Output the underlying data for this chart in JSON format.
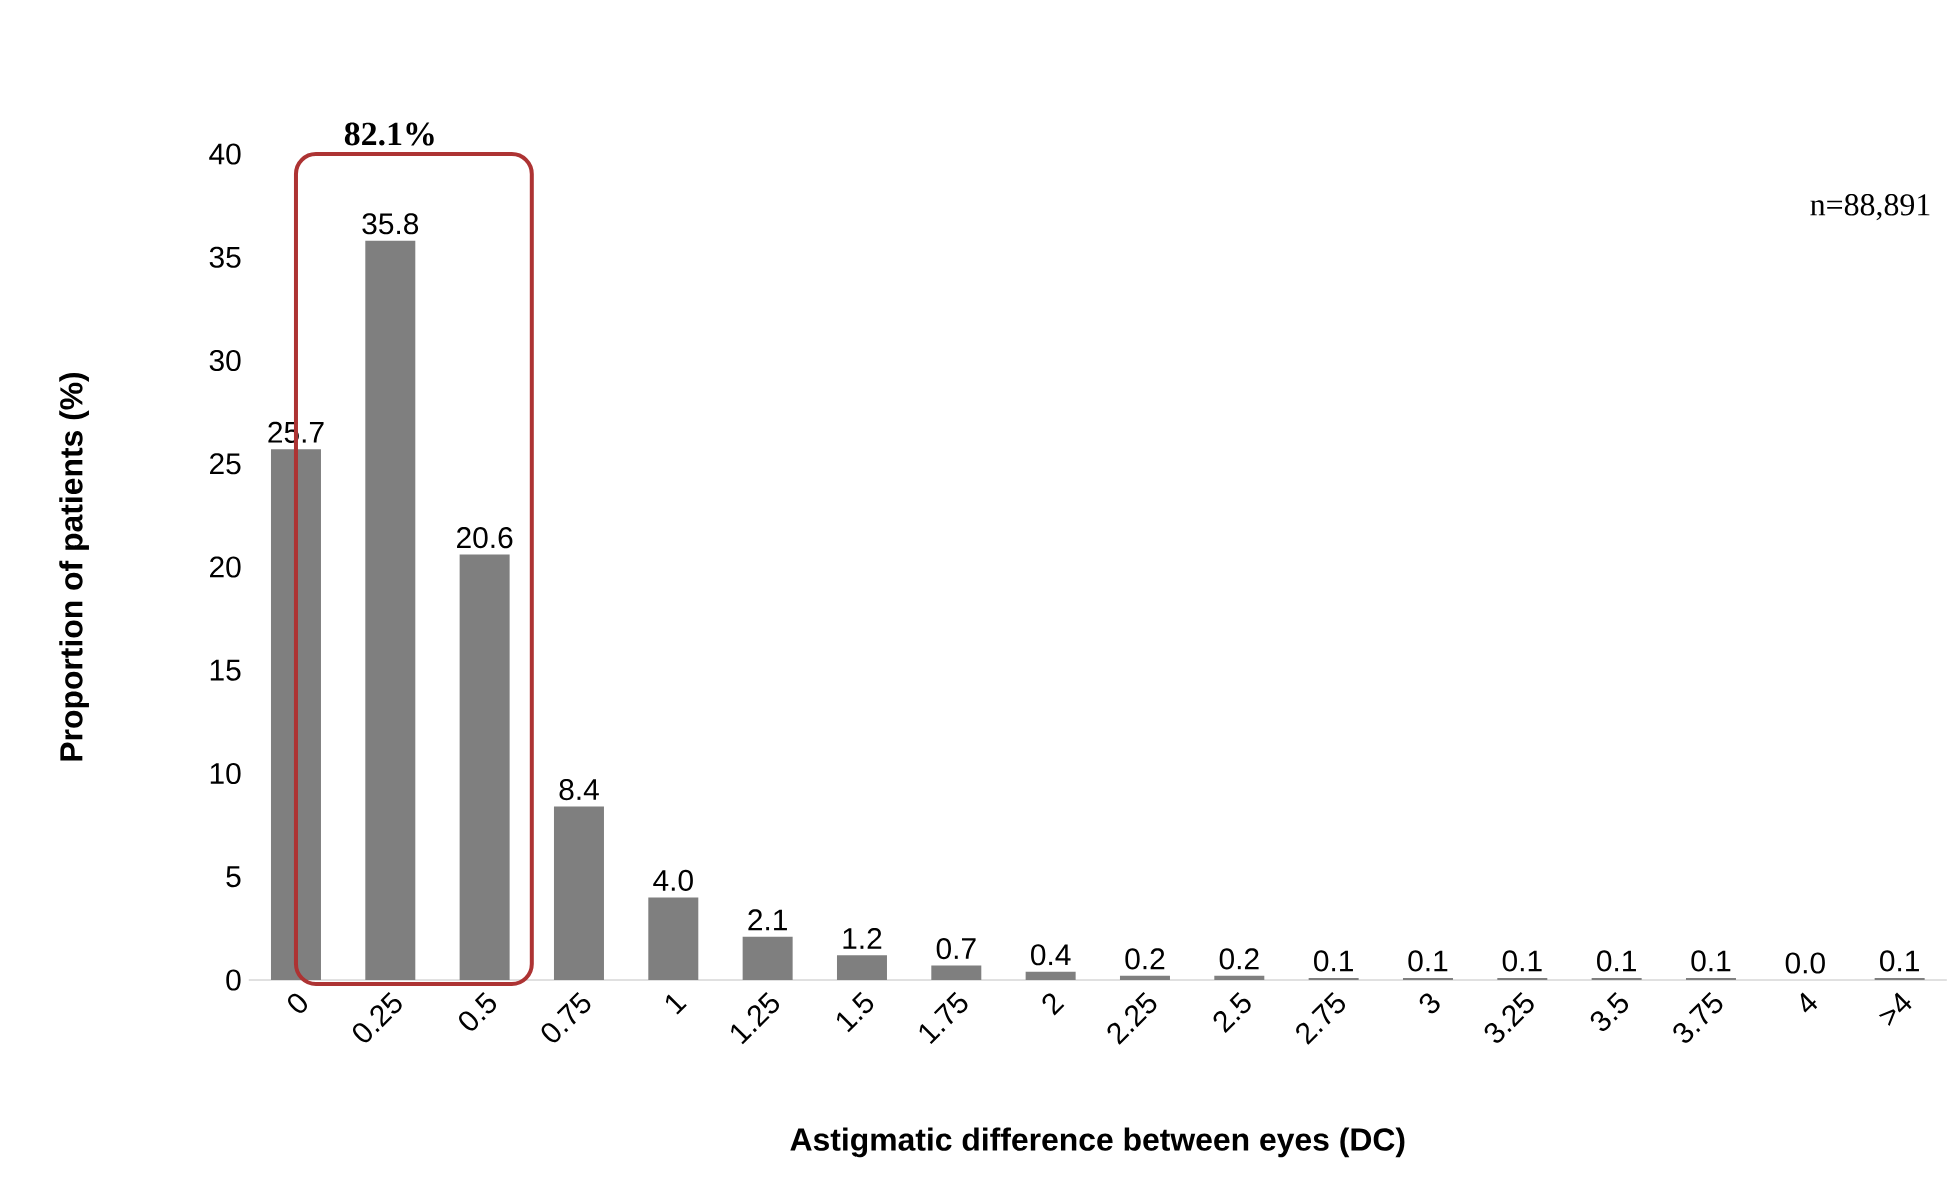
{
  "chart_data": {
    "type": "bar",
    "xlabel": "Astigmatic difference between eyes (DC)",
    "ylabel": "Proportion of patients (%)",
    "categories": [
      "0",
      "0.25",
      "0.5",
      "0.75",
      "1",
      "1.25",
      "1.5",
      "1.75",
      "2",
      "2.25",
      "2.5",
      "2.75",
      "3",
      "3.25",
      "3.5",
      "3.75",
      "4",
      ">4"
    ],
    "values": [
      25.7,
      35.8,
      20.6,
      8.4,
      4.0,
      2.1,
      1.2,
      0.7,
      0.4,
      0.2,
      0.2,
      0.1,
      0.1,
      0.1,
      0.1,
      0.1,
      0.0,
      0.1
    ],
    "value_labels": [
      "25.7",
      "35.8",
      "20.6",
      "8.4",
      "4.0",
      "2.1",
      "1.2",
      "0.7",
      "0.4",
      "0.2",
      "0.2",
      "0.1",
      "0.1",
      "0.1",
      "0.1",
      "0.1",
      "0.0",
      "0.1"
    ],
    "color": "#7f7f7f",
    "ylim": [
      0,
      40
    ],
    "yticks": [
      0,
      5,
      10,
      15,
      20,
      25,
      30,
      35,
      40
    ],
    "annotations": [
      "82.1%",
      "n=88,891"
    ]
  }
}
